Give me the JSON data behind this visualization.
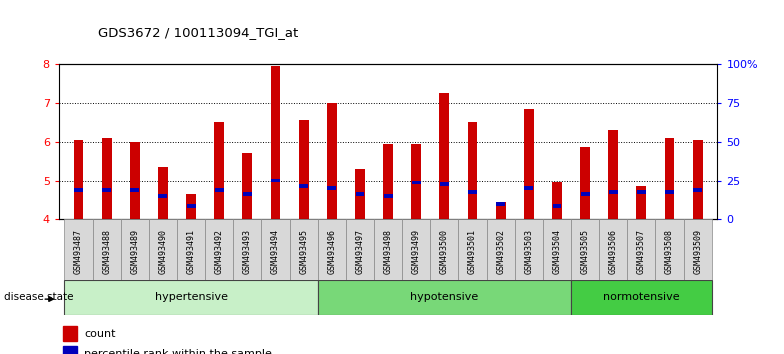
{
  "title": "GDS3672 / 100113094_TGI_at",
  "samples": [
    "GSM493487",
    "GSM493488",
    "GSM493489",
    "GSM493490",
    "GSM493491",
    "GSM493492",
    "GSM493493",
    "GSM493494",
    "GSM493495",
    "GSM493496",
    "GSM493497",
    "GSM493498",
    "GSM493499",
    "GSM493500",
    "GSM493501",
    "GSM493502",
    "GSM493503",
    "GSM493504",
    "GSM493505",
    "GSM493506",
    "GSM493507",
    "GSM493508",
    "GSM493509"
  ],
  "red_values": [
    6.05,
    6.1,
    6.0,
    5.35,
    4.65,
    6.5,
    5.7,
    7.95,
    6.55,
    7.0,
    5.3,
    5.95,
    5.95,
    7.25,
    6.5,
    4.45,
    6.85,
    4.95,
    5.85,
    6.3,
    4.85,
    6.1,
    6.05
  ],
  "blue_values": [
    4.75,
    4.75,
    4.75,
    4.6,
    4.35,
    4.75,
    4.65,
    5.0,
    4.85,
    4.8,
    4.65,
    4.6,
    4.95,
    4.9,
    4.7,
    4.4,
    4.8,
    4.35,
    4.65,
    4.7,
    4.7,
    4.7,
    4.75
  ],
  "groups": [
    {
      "label": "hypertensive",
      "start": 0,
      "end": 8,
      "color": "#c8f0c8"
    },
    {
      "label": "hypotensive",
      "start": 9,
      "end": 17,
      "color": "#78d878"
    },
    {
      "label": "normotensive",
      "start": 18,
      "end": 22,
      "color": "#44cc44"
    }
  ],
  "ylim": [
    4.0,
    8.0
  ],
  "yticks_left": [
    4,
    5,
    6,
    7,
    8
  ],
  "yticks_right_vals": [
    0,
    25,
    50,
    75,
    100
  ],
  "yticks_right_labels": [
    "0",
    "25",
    "50",
    "75",
    "100%"
  ],
  "bar_width": 0.35,
  "red_color": "#cc0000",
  "blue_color": "#0000bb",
  "background_color": "#ffffff",
  "disease_label": "disease state",
  "legend_count": "count",
  "legend_percentile": "percentile rank within the sample"
}
